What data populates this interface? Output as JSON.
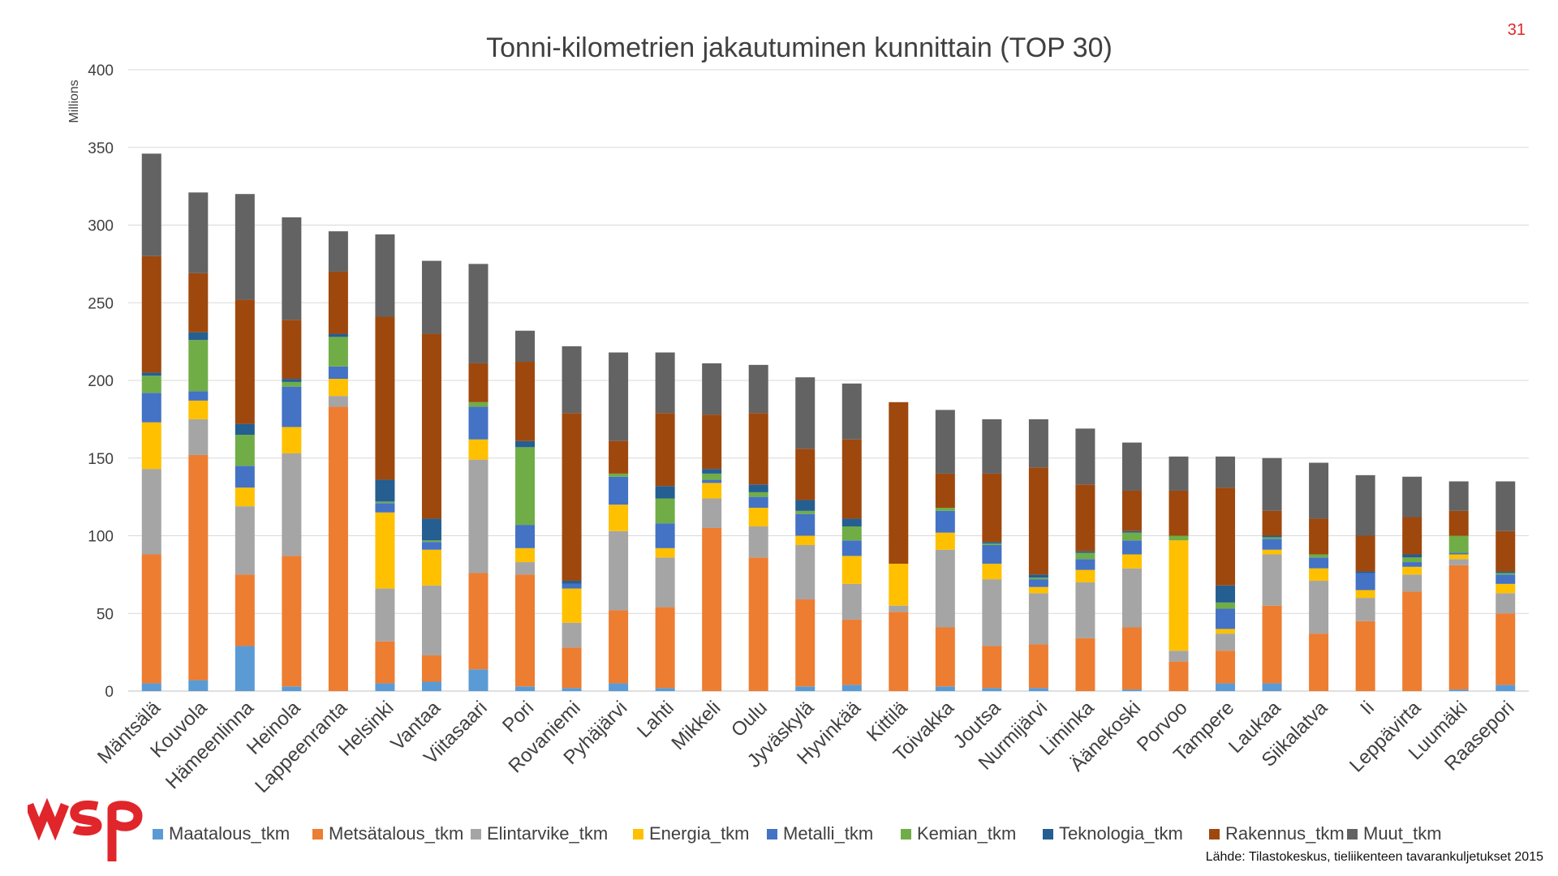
{
  "page_number": "31",
  "source_note": "Lähde: Tilastokeskus, tieliikenteen tavarankuljetukset 2015",
  "logo": {
    "text": "wsp",
    "color": "#e0262b"
  },
  "colors": [
    "#5b9bd5",
    "#ed7d31",
    "#a5a5a5",
    "#ffc000",
    "#4472c4",
    "#70ad47",
    "#255e91",
    "#9e480e",
    "#636363"
  ],
  "chart_data": {
    "type": "bar",
    "stacked": true,
    "title": "Tonni-kilometrien jakautuminen kunnittain (TOP 30)",
    "xlabel": "",
    "ylabel": "Millions",
    "ylim": [
      0,
      400
    ],
    "yticks": [
      0,
      50,
      100,
      150,
      200,
      250,
      300,
      350,
      400
    ],
    "grid": true,
    "legend_position": "bottom",
    "categories": [
      "Mäntsälä",
      "Kouvola",
      "Hämeenlinna",
      "Heinola",
      "Lappeenranta",
      "Helsinki",
      "Vantaa",
      "Viitasaari",
      "Pori",
      "Rovaniemi",
      "Pyhäjärvi",
      "Lahti",
      "Mikkeli",
      "Oulu",
      "Jyväskylä",
      "Hyvinkää",
      "Kittilä",
      "Toivakka",
      "Joutsa",
      "Nurmijärvi",
      "Liminka",
      "Äänekoski",
      "Porvoo",
      "Tampere",
      "Laukaa",
      "Siikalatva",
      "Ii",
      "Leppävirta",
      "Luumäki",
      "Raasepori"
    ],
    "series": [
      {
        "name": "Maatalous_tkm",
        "values": [
          5,
          7,
          29,
          3,
          0,
          5,
          6,
          14,
          3,
          2,
          5,
          2,
          0,
          0,
          3,
          4,
          0,
          3,
          2,
          2,
          0,
          1,
          0,
          5,
          5,
          0,
          0,
          0,
          1,
          4
        ]
      },
      {
        "name": "Metsätalous_tkm",
        "values": [
          83,
          145,
          46,
          84,
          183,
          27,
          17,
          62,
          72,
          26,
          47,
          52,
          105,
          86,
          56,
          42,
          51,
          38,
          27,
          28,
          34,
          40,
          19,
          21,
          50,
          37,
          45,
          64,
          80,
          46
        ]
      },
      {
        "name": "Elintarvike_tkm",
        "values": [
          55,
          23,
          44,
          66,
          7,
          34,
          45,
          73,
          8,
          16,
          51,
          32,
          19,
          20,
          35,
          23,
          4,
          50,
          43,
          33,
          36,
          38,
          7,
          11,
          33,
          34,
          15,
          11,
          4,
          13
        ]
      },
      {
        "name": "Energia_tkm",
        "values": [
          30,
          12,
          12,
          17,
          11,
          49,
          23,
          13,
          9,
          22,
          17,
          6,
          10,
          12,
          6,
          18,
          27,
          11,
          10,
          4,
          8,
          9,
          71,
          3,
          3,
          8,
          5,
          5,
          3,
          6
        ]
      },
      {
        "name": "Metalli_tkm",
        "values": [
          19,
          6,
          14,
          26,
          8,
          6,
          5,
          21,
          15,
          3,
          18,
          16,
          2,
          7,
          14,
          10,
          0,
          14,
          12,
          5,
          7,
          9,
          0,
          13,
          7,
          7,
          11,
          3,
          1,
          6
        ]
      },
      {
        "name": "Kemian_tkm",
        "values": [
          11,
          33,
          20,
          3,
          19,
          1,
          1,
          3,
          50,
          0,
          2,
          16,
          4,
          3,
          2,
          9,
          0,
          2,
          1,
          1,
          4,
          5,
          3,
          4,
          1,
          2,
          0,
          3,
          11,
          1
        ]
      },
      {
        "name": "Teknologia_tkm",
        "values": [
          2,
          5,
          7,
          2,
          2,
          14,
          14,
          0,
          4,
          2,
          0,
          8,
          3,
          5,
          7,
          5,
          0,
          0,
          1,
          2,
          1,
          1,
          0,
          11,
          1,
          0,
          1,
          2,
          0,
          1
        ]
      },
      {
        "name": "Rakennus_tkm",
        "values": [
          75,
          38,
          80,
          38,
          40,
          105,
          119,
          25,
          51,
          108,
          21,
          47,
          35,
          46,
          33,
          51,
          104,
          22,
          44,
          69,
          43,
          26,
          29,
          63,
          16,
          23,
          23,
          24,
          16,
          26
        ]
      },
      {
        "name": "Muut_tkm",
        "values": [
          66,
          52,
          68,
          66,
          26,
          53,
          47,
          64,
          20,
          43,
          57,
          39,
          33,
          31,
          46,
          36,
          0,
          41,
          35,
          31,
          36,
          31,
          22,
          20,
          34,
          36,
          39,
          26,
          19,
          32
        ]
      }
    ]
  }
}
